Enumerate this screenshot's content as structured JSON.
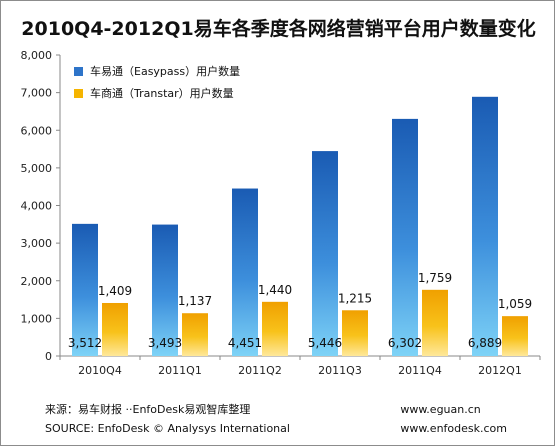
{
  "title": "2010Q4-2012Q1易车各季度各网络营销平台用户数量变化",
  "chart_data": {
    "type": "bar",
    "categories": [
      "2010Q4",
      "2011Q1",
      "2011Q2",
      "2011Q3",
      "2011Q4",
      "2012Q1"
    ],
    "series": [
      {
        "name": "车易通（Easypass）用户数量",
        "values": [
          3512,
          3493,
          4451,
          5446,
          6302,
          6889
        ],
        "color": "#2e74c9"
      },
      {
        "name": "车商通（Transtar）用户数量",
        "values": [
          1409,
          1137,
          1440,
          1215,
          1759,
          1059
        ],
        "color": "#f5b400"
      }
    ],
    "ylim": [
      0,
      8000
    ],
    "yticks": [
      "0",
      "1,000",
      "2,000",
      "3,000",
      "4,000",
      "5,000",
      "6,000",
      "7,000",
      "8,000"
    ],
    "data_labels": [
      [
        "3,512",
        "3,493",
        "4,451",
        "5,446",
        "6,302",
        "6,889"
      ],
      [
        "1,409",
        "1,137",
        "1,440",
        "1,215",
        "1,759",
        "1,059"
      ]
    ],
    "legend_position": "top-left",
    "grid": false
  },
  "footer": {
    "source_cn": "来源：易车财报 ··EnfoDesk易观智库整理",
    "source_en": "SOURCE: EnfoDesk © Analysys International",
    "url1": "www.eguan.cn",
    "url2": "www.enfodesk.com"
  }
}
